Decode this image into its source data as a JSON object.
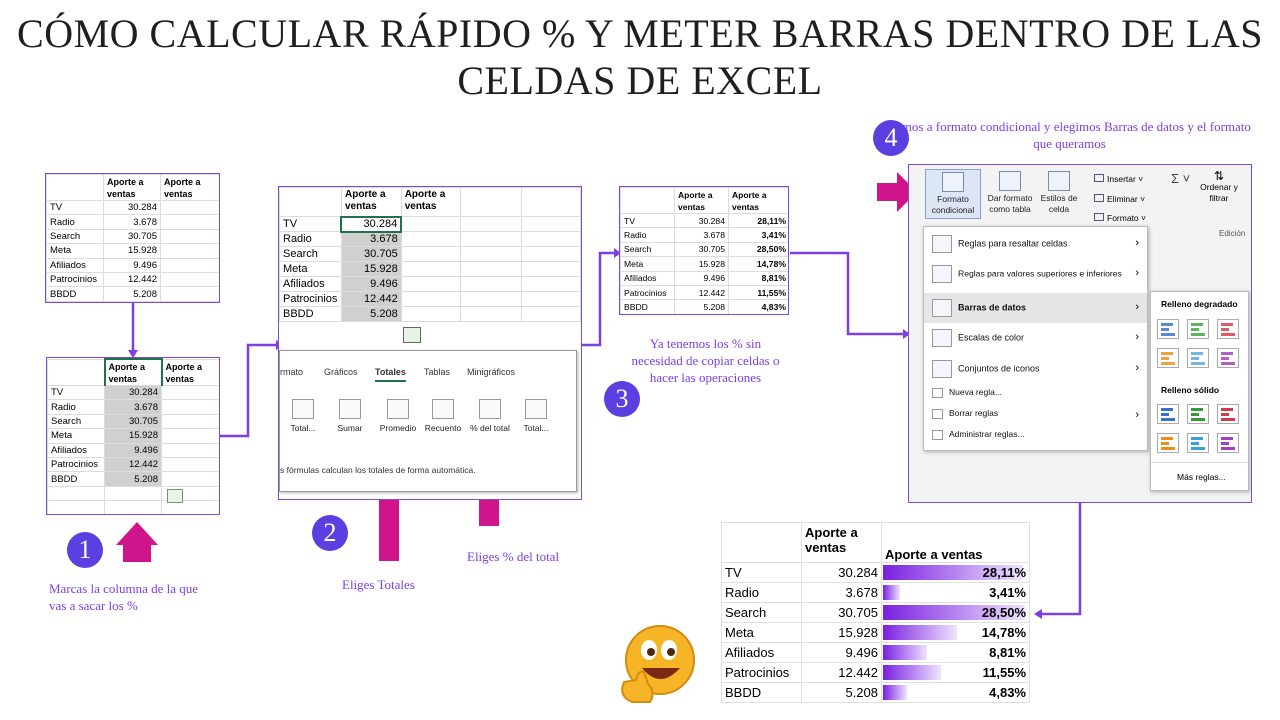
{
  "title_line1": "CÓMO CALCULAR RÁPIDO % Y METER BARRAS DENTRO DE LAS",
  "title_line2": "CELDAS DE EXCEL",
  "header1": "Aporte a",
  "header2": "ventas",
  "rows": [
    {
      "label": "TV",
      "value": "30.284",
      "pct": "28,11%"
    },
    {
      "label": "Radio",
      "value": "3.678",
      "pct": "3,41%"
    },
    {
      "label": "Search",
      "value": "30.705",
      "pct": "28,50%"
    },
    {
      "label": "Meta",
      "value": "15.928",
      "pct": "14,78%"
    },
    {
      "label": "Afiliados",
      "value": "9.496",
      "pct": "8,81%"
    },
    {
      "label": "Patrocinios",
      "value": "12.442",
      "pct": "11,55%"
    },
    {
      "label": "BBDD",
      "value": "5.208",
      "pct": "4,83%"
    }
  ],
  "bar_fill": [
    0.281,
    0.034,
    0.285,
    0.148,
    0.088,
    0.116,
    0.048
  ],
  "step1": {
    "num": "1",
    "text": "Marcas la columna de la que vas a sacar los %"
  },
  "step2": {
    "num": "2",
    "text": "Eliges Totales",
    "text2": "Eliges % del total"
  },
  "step3": {
    "num": "3",
    "text": "Ya tenemos los % sin necesidad de copiar celdas o hacer las operaciones"
  },
  "step4": {
    "num": "4",
    "text": "Vamos a formato condicional y elegimos Barras de datos y el formato que queramos"
  },
  "quick_analysis": {
    "tabs": [
      "rmato",
      "Gráficos",
      "Totales",
      "Tablas",
      "Minigráficos"
    ],
    "buttons": [
      "Total...",
      "Sumar",
      "Promedio",
      "Recuento",
      "% del total",
      "Total..."
    ],
    "footer": "s fórmulas calculan los totales de forma automática."
  },
  "ribbon": {
    "cf": "Formato condicional",
    "table": "Dar formato como tabla",
    "styles": "Estilos de celda",
    "insert": "Insertar",
    "delete": "Eliminar",
    "format": "Formato",
    "sort": "Ordenar y filtrar",
    "edit": "Edición"
  },
  "menu": {
    "items": [
      "Reglas para resaltar celdas",
      "Reglas para valores superiores e inferiores",
      "Barras de datos",
      "Escalas de color",
      "Conjuntos de iconos",
      "Nueva regla...",
      "Borrar reglas",
      "Administrar reglas..."
    ],
    "gradient": "Relleno degradado",
    "solid": "Relleno sólido",
    "more": "Más reglas..."
  },
  "colors": {
    "accent": "#7b3fe4",
    "arrow": "#d0148c",
    "badge": "#5b3fe0"
  }
}
